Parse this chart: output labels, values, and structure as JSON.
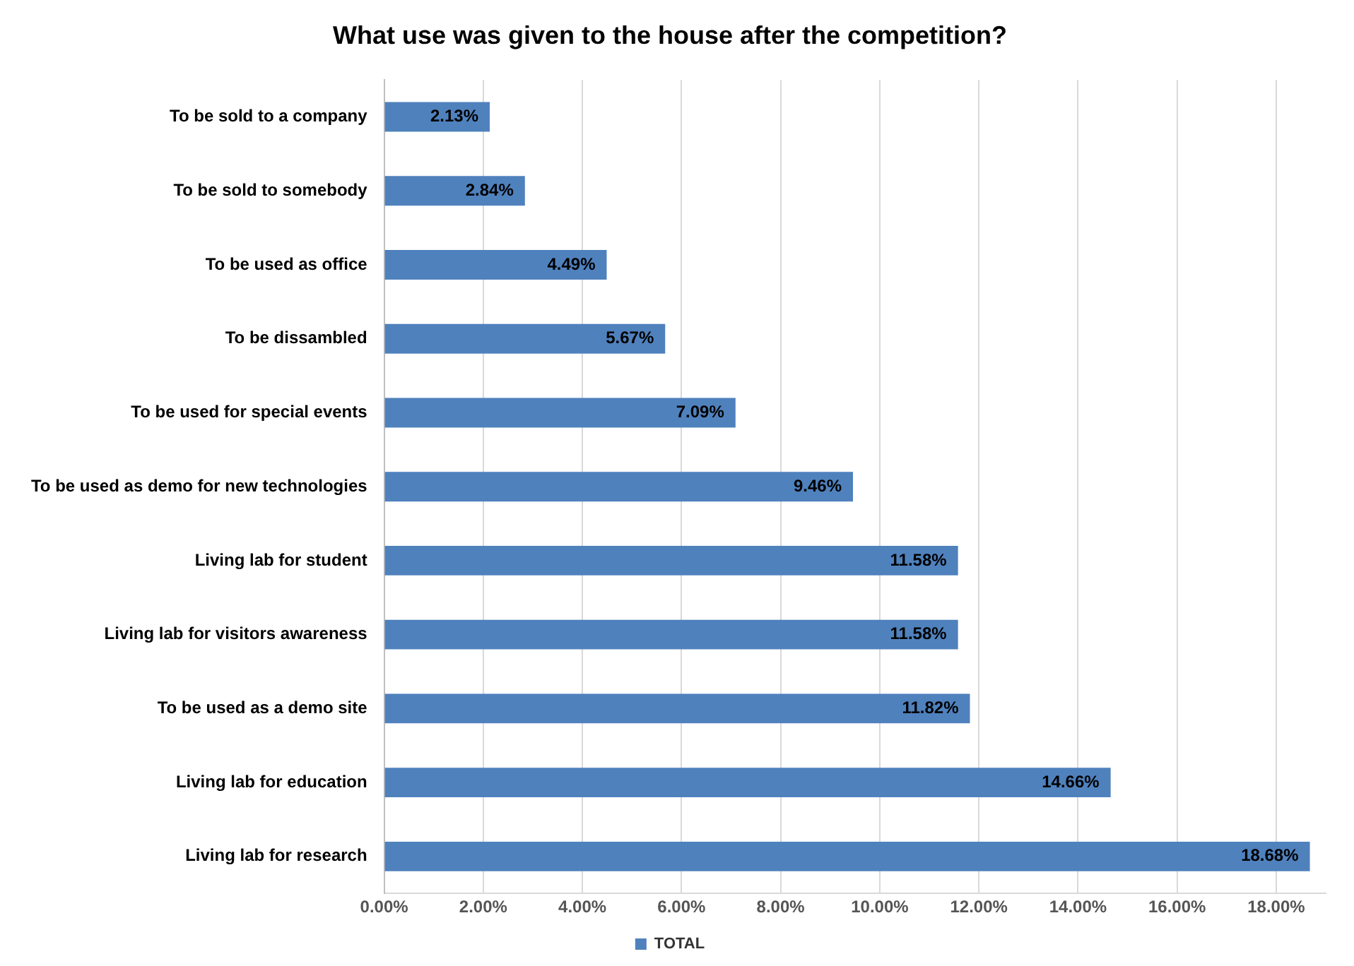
{
  "chart_data": {
    "type": "bar",
    "orientation": "horizontal",
    "title": "What use was given to the house after the competition?",
    "categories": [
      "To be sold to a company",
      "To be sold to somebody",
      "To be used as office",
      "To be dissambled",
      "To be used for special events",
      "To be used as demo for new technologies",
      "Living lab for student",
      "Living lab for visitors awareness",
      "To be used as a demo site",
      "Living lab for education",
      "Living lab for research"
    ],
    "series": [
      {
        "name": "TOTAL",
        "color": "#4f81bd",
        "values": [
          2.13,
          2.84,
          4.49,
          5.67,
          7.09,
          9.46,
          11.58,
          11.58,
          11.82,
          14.66,
          18.68
        ],
        "value_labels": [
          "2.13%",
          "2.84%",
          "4.49%",
          "5.67%",
          "7.09%",
          "9.46%",
          "11.58%",
          "11.58%",
          "11.82%",
          "14.66%",
          "18.68%"
        ]
      }
    ],
    "xlim": [
      0,
      19
    ],
    "xticks": [
      {
        "value": 0,
        "label": "0.00%"
      },
      {
        "value": 2,
        "label": "2.00%"
      },
      {
        "value": 4,
        "label": "4.00%"
      },
      {
        "value": 6,
        "label": "6.00%"
      },
      {
        "value": 8,
        "label": "8.00%"
      },
      {
        "value": 10,
        "label": "10.00%"
      },
      {
        "value": 12,
        "label": "12.00%"
      },
      {
        "value": 14,
        "label": "14.00%"
      },
      {
        "value": 16,
        "label": "16.00%"
      },
      {
        "value": 18,
        "label": "18.00%"
      }
    ],
    "grid": "x",
    "legend": "bottom"
  }
}
